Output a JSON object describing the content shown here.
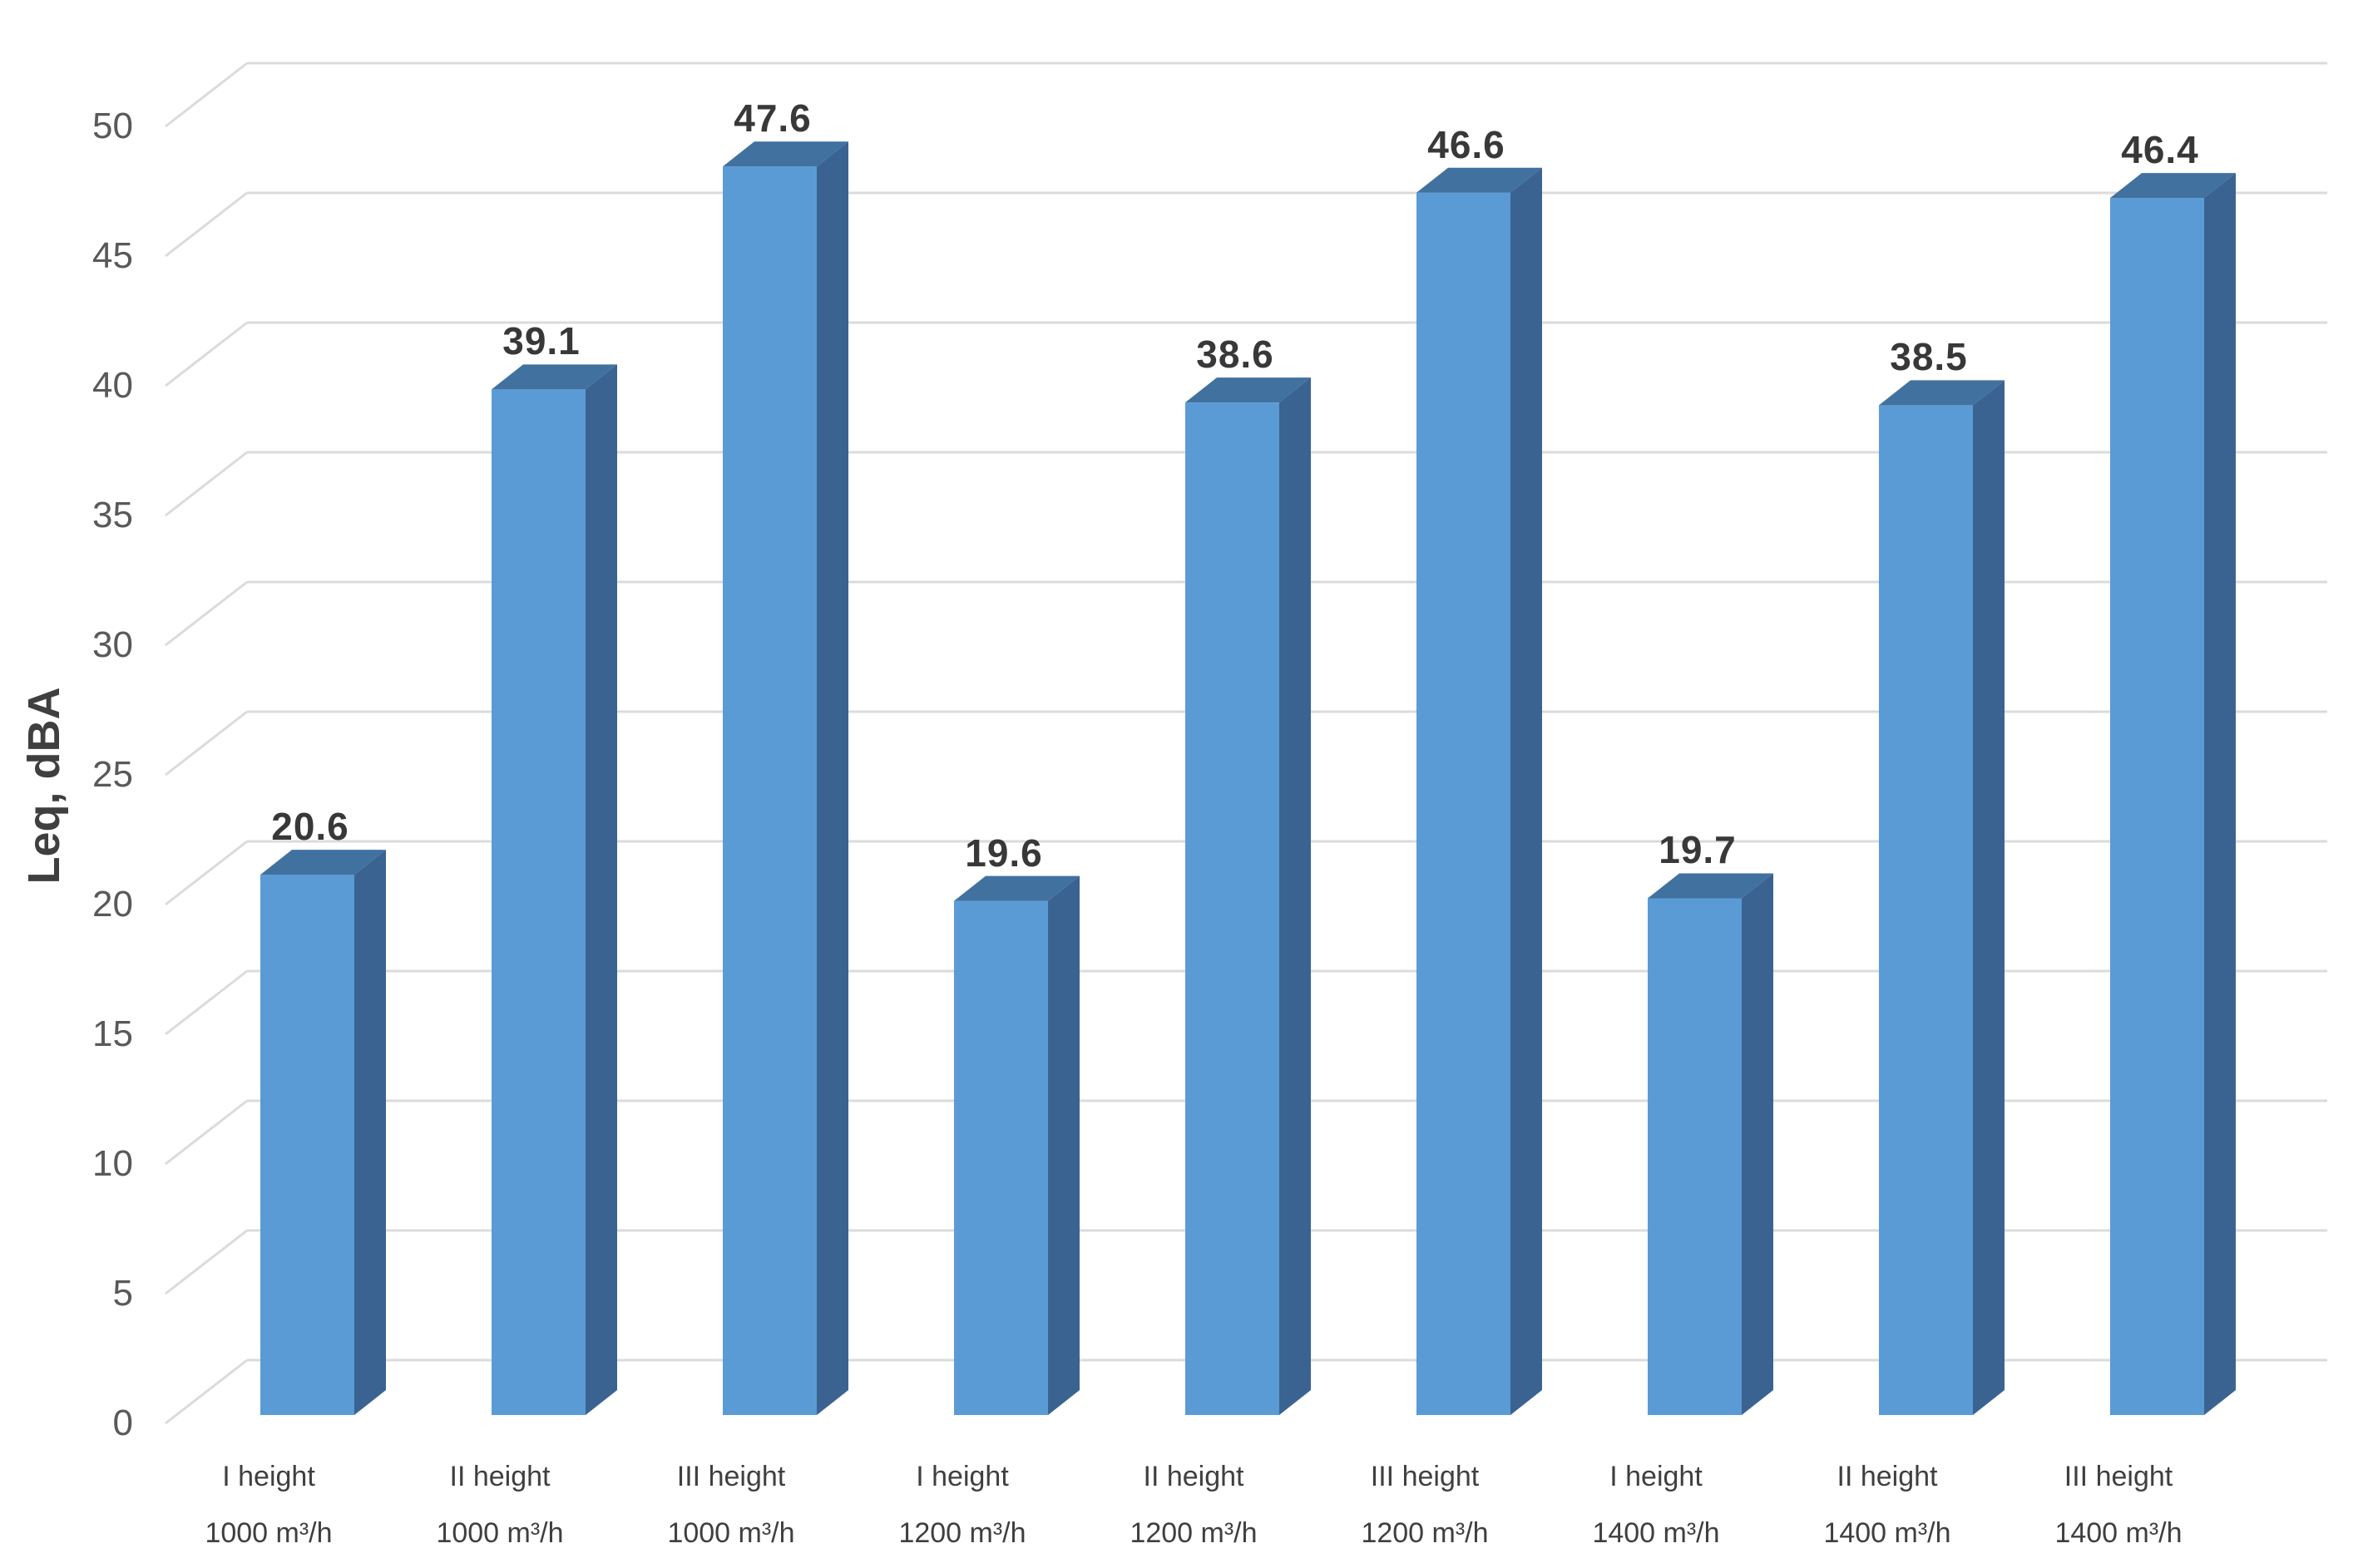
{
  "chart_data": {
    "type": "bar",
    "projection": "3d",
    "title": "",
    "xlabel": "",
    "ylabel": "Leq, dBA",
    "ylim": [
      0,
      50
    ],
    "ytick_step": 5,
    "grid": "on",
    "legend": "none",
    "categories": [
      "I height\n1000 m³/h",
      "II height\n1000 m³/h",
      "III height\n1000 m³/h",
      "I height\n1200 m³/h",
      "II height\n1200 m³/h",
      "III height\n1200 m³/h",
      "I height\n1400 m³/h",
      "II height\n1400 m³/h",
      "III height\n1400 m³/h"
    ],
    "values": [
      20.6,
      39.1,
      47.6,
      19.6,
      38.6,
      46.6,
      19.7,
      38.5,
      46.4
    ],
    "bar_color": "#5B9BD5"
  },
  "axis": {
    "ylabel": "Leq, dBA",
    "yticks": [
      "50",
      "45",
      "40",
      "35",
      "30",
      "25",
      "20",
      "15",
      "10",
      "5",
      "0"
    ]
  },
  "bars": [
    {
      "line1": "I height",
      "line2": "1000 m³/h",
      "value": 20.6,
      "label": "20.6"
    },
    {
      "line1": "II height",
      "line2": "1000 m³/h",
      "value": 39.1,
      "label": "39.1"
    },
    {
      "line1": "III height",
      "line2": "1000 m³/h",
      "value": 47.6,
      "label": "47.6"
    },
    {
      "line1": "I height",
      "line2": "1200 m³/h",
      "value": 19.6,
      "label": "19.6"
    },
    {
      "line1": "II height",
      "line2": "1200 m³/h",
      "value": 38.6,
      "label": "38.6"
    },
    {
      "line1": "III height",
      "line2": "1200 m³/h",
      "value": 46.6,
      "label": "46.6"
    },
    {
      "line1": "I height",
      "line2": "1400 m³/h",
      "value": 19.7,
      "label": "19.7"
    },
    {
      "line1": "II height",
      "line2": "1400 m³/h",
      "value": 38.5,
      "label": "38.5"
    },
    {
      "line1": "III height",
      "line2": "1400 m³/h",
      "value": 46.4,
      "label": "46.4"
    }
  ],
  "colors": {
    "bar_front": "#5B9BD5",
    "bar_top": "#41719F",
    "bar_side": "#3A6391",
    "gridline": "#DBDBDB",
    "tick_text": "#595959",
    "category_text": "#3F3F3F",
    "data_label_text": "#383838",
    "axis_title_text": "#3F3F3F"
  }
}
